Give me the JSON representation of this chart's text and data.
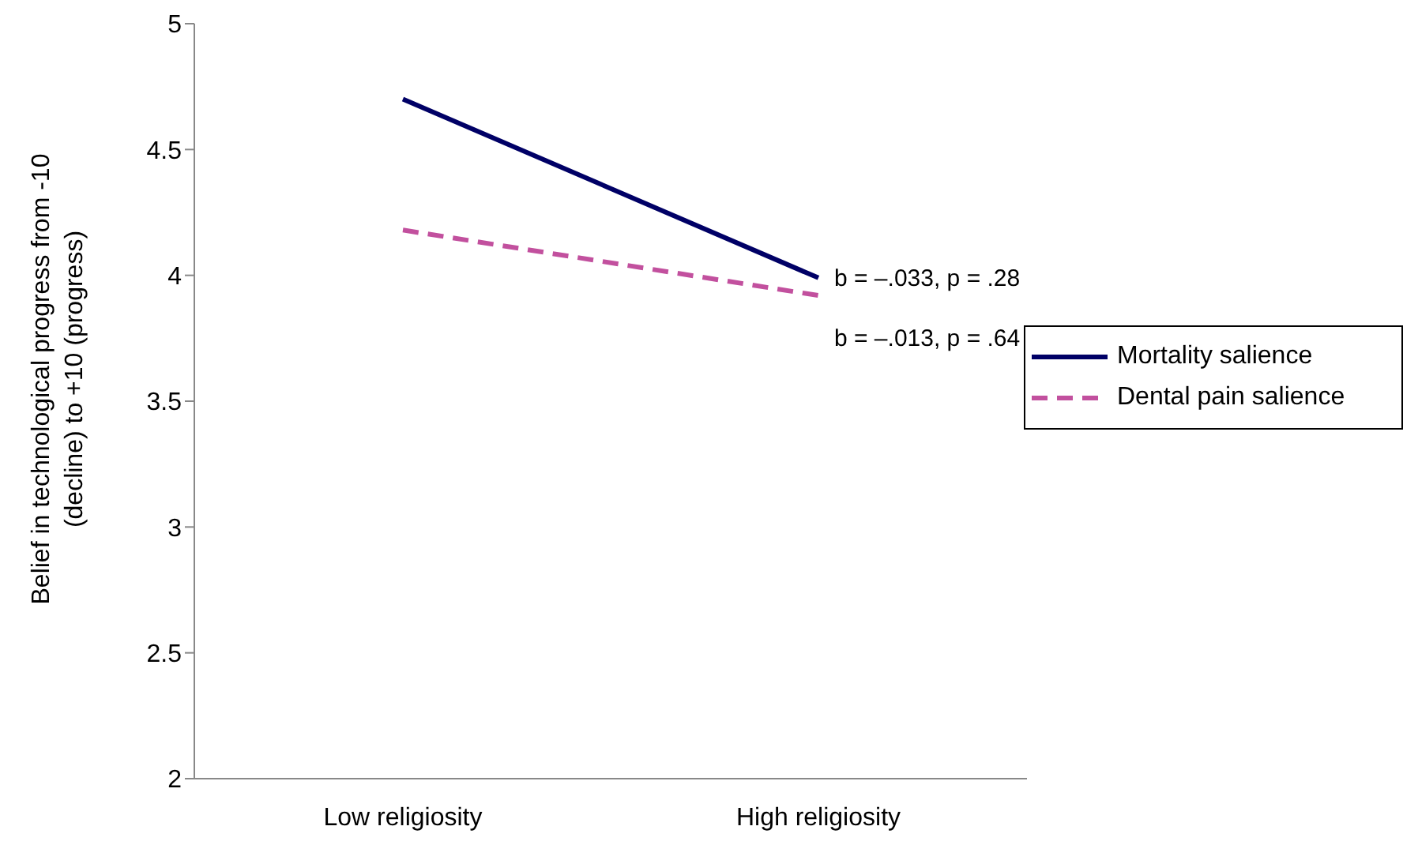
{
  "chart_data": {
    "type": "line",
    "ylabel": "Belief in technological progress from -10 (decline) to +10 (progress)",
    "categories": [
      "Low religiosity",
      "High religiosity"
    ],
    "series": [
      {
        "name": "Mortality salience",
        "color": "#000066",
        "values": [
          4.7,
          3.99
        ],
        "line_style": "solid"
      },
      {
        "name": "Dental pain salience",
        "color": "#c2509e",
        "values": [
          4.18,
          3.92
        ],
        "line_style": "dashed"
      }
    ],
    "ylim": [
      2,
      5
    ],
    "yticks": [
      2,
      2.5,
      3,
      3.5,
      4,
      4.5,
      5
    ],
    "grid": false,
    "legend": "right",
    "marker": "none",
    "annotations": [
      "b =  –.033, p = .28",
      "b =  –.013, p = .64"
    ]
  }
}
